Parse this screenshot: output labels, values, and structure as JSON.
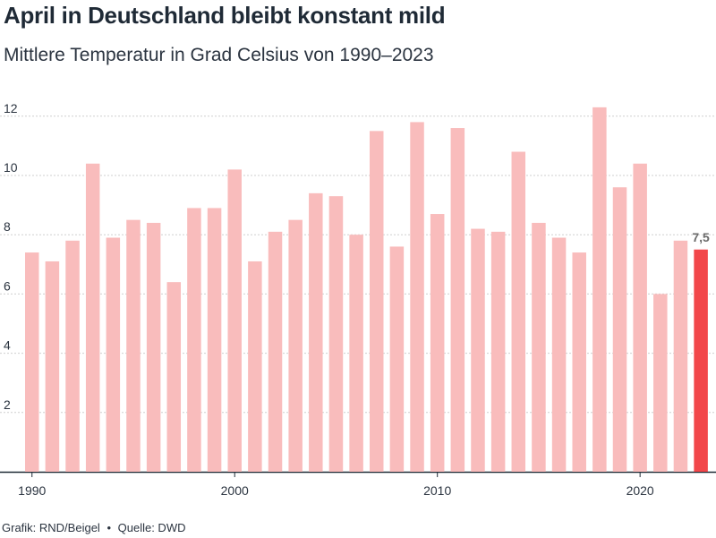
{
  "title": "April in Deutschland bleibt konstant mild",
  "subtitle": "Mittlere Temperatur in Grad Celsius von 1990–2023",
  "footer": {
    "grafik": "Grafik: RND/Beigel",
    "separator": "•",
    "quelle": "Quelle: DWD"
  },
  "colors": {
    "bar": "#f9bcbc",
    "highlight": "#f2474a",
    "gridline": "#cfcfcf",
    "baseline": "#1f2a36"
  },
  "chart_data": {
    "type": "bar",
    "years": [
      1990,
      1991,
      1992,
      1993,
      1994,
      1995,
      1996,
      1997,
      1998,
      1999,
      2000,
      2001,
      2002,
      2003,
      2004,
      2005,
      2006,
      2007,
      2008,
      2009,
      2010,
      2011,
      2012,
      2013,
      2014,
      2015,
      2016,
      2017,
      2018,
      2019,
      2020,
      2021,
      2022,
      2023
    ],
    "values": [
      7.4,
      7.1,
      7.8,
      10.4,
      7.9,
      8.5,
      8.4,
      6.4,
      8.9,
      8.9,
      10.2,
      7.1,
      8.1,
      8.5,
      9.4,
      9.3,
      8.0,
      11.5,
      7.6,
      11.8,
      8.7,
      11.6,
      8.2,
      8.1,
      10.8,
      8.4,
      7.9,
      7.4,
      12.3,
      9.6,
      10.4,
      6.0,
      7.8,
      7.5
    ],
    "highlight_year": 2023,
    "highlight_label": "7,5",
    "yticks": [
      2,
      4,
      6,
      8,
      10,
      12
    ],
    "xticks": [
      1990,
      2000,
      2010,
      2020
    ],
    "ylim": [
      0,
      13.5
    ],
    "grid": true
  }
}
